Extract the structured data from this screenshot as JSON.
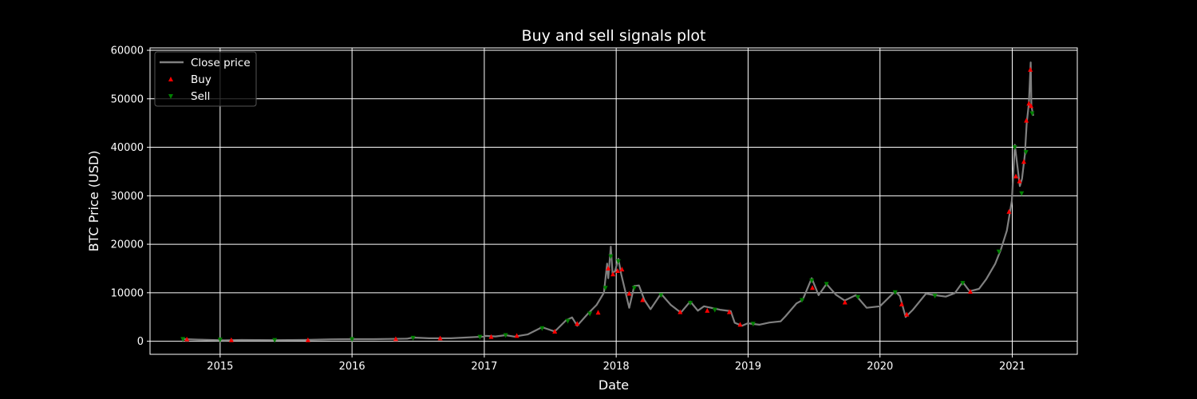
{
  "chart_data": {
    "type": "line",
    "title": "Buy and sell signals plot",
    "xlabel": "Date",
    "ylabel": "BTC Price (USD)",
    "x_range": [
      "2014-06-21",
      "2021-06-30"
    ],
    "ylim": [
      -2700,
      60500
    ],
    "x_ticks": [
      "2015",
      "2016",
      "2017",
      "2018",
      "2019",
      "2020",
      "2021"
    ],
    "y_ticks": [
      0,
      10000,
      20000,
      30000,
      40000,
      50000,
      60000
    ],
    "grid": true,
    "legend_position": "top-left",
    "legend": [
      {
        "label": "Close price",
        "marker": "line"
      },
      {
        "label": "Buy",
        "marker": "triangle-up"
      },
      {
        "label": "Sell",
        "marker": "triangle-down"
      }
    ],
    "colors": {
      "background": "#000000",
      "text": "#ffffff",
      "grid": "#ffffff",
      "close": "#808080",
      "buy": "#ff0000",
      "sell": "#008000"
    },
    "series": [
      {
        "name": "Close price",
        "points": [
          [
            "2014-09-17",
            457
          ],
          [
            "2014-11-01",
            330
          ],
          [
            "2015-01-14",
            180
          ],
          [
            "2015-03-01",
            260
          ],
          [
            "2015-06-01",
            230
          ],
          [
            "2015-08-15",
            260
          ],
          [
            "2015-11-04",
            400
          ],
          [
            "2015-12-31",
            430
          ],
          [
            "2016-03-01",
            430
          ],
          [
            "2016-06-01",
            530
          ],
          [
            "2016-06-18",
            760
          ],
          [
            "2016-08-01",
            610
          ],
          [
            "2016-10-01",
            610
          ],
          [
            "2016-12-31",
            960
          ],
          [
            "2017-01-05",
            1100
          ],
          [
            "2017-02-01",
            990
          ],
          [
            "2017-03-01",
            1250
          ],
          [
            "2017-03-25",
            950
          ],
          [
            "2017-05-01",
            1400
          ],
          [
            "2017-06-10",
            2900
          ],
          [
            "2017-07-15",
            2000
          ],
          [
            "2017-08-15",
            4300
          ],
          [
            "2017-09-01",
            4900
          ],
          [
            "2017-09-15",
            3200
          ],
          [
            "2017-10-15",
            5700
          ],
          [
            "2017-11-08",
            7500
          ],
          [
            "2017-11-28",
            10000
          ],
          [
            "2017-12-07",
            16000
          ],
          [
            "2017-12-10",
            13000
          ],
          [
            "2017-12-17",
            19500
          ],
          [
            "2017-12-22",
            14000
          ],
          [
            "2017-12-29",
            14500
          ],
          [
            "2018-01-07",
            17000
          ],
          [
            "2018-01-15",
            13800
          ],
          [
            "2018-02-06",
            6900
          ],
          [
            "2018-02-20",
            11400
          ],
          [
            "2018-03-05",
            11500
          ],
          [
            "2018-03-20",
            8500
          ],
          [
            "2018-04-06",
            6600
          ],
          [
            "2018-05-05",
            9800
          ],
          [
            "2018-06-01",
            7500
          ],
          [
            "2018-06-29",
            5900
          ],
          [
            "2018-07-25",
            8200
          ],
          [
            "2018-08-15",
            6300
          ],
          [
            "2018-09-01",
            7200
          ],
          [
            "2018-10-15",
            6500
          ],
          [
            "2018-11-14",
            6200
          ],
          [
            "2018-11-25",
            3800
          ],
          [
            "2018-12-15",
            3200
          ],
          [
            "2018-12-31",
            3700
          ],
          [
            "2019-02-01",
            3400
          ],
          [
            "2019-03-01",
            3850
          ],
          [
            "2019-04-01",
            4100
          ],
          [
            "2019-04-15",
            5200
          ],
          [
            "2019-05-15",
            7800
          ],
          [
            "2019-06-01",
            8500
          ],
          [
            "2019-06-26",
            13000
          ],
          [
            "2019-07-15",
            9500
          ],
          [
            "2019-08-06",
            11800
          ],
          [
            "2019-09-01",
            9600
          ],
          [
            "2019-09-25",
            8400
          ],
          [
            "2019-10-26",
            9500
          ],
          [
            "2019-11-25",
            6900
          ],
          [
            "2020-01-01",
            7200
          ],
          [
            "2020-02-12",
            10300
          ],
          [
            "2020-02-25",
            9300
          ],
          [
            "2020-03-12",
            5000
          ],
          [
            "2020-04-01",
            6500
          ],
          [
            "2020-05-07",
            9800
          ],
          [
            "2020-06-01",
            9500
          ],
          [
            "2020-07-01",
            9200
          ],
          [
            "2020-07-26",
            9900
          ],
          [
            "2020-08-17",
            12200
          ],
          [
            "2020-09-05",
            10300
          ],
          [
            "2020-10-01",
            10800
          ],
          [
            "2020-10-21",
            12800
          ],
          [
            "2020-11-15",
            16000
          ],
          [
            "2020-12-01",
            19000
          ],
          [
            "2020-12-17",
            22800
          ],
          [
            "2020-12-31",
            29000
          ],
          [
            "2021-01-08",
            40500
          ],
          [
            "2021-01-22",
            32000
          ],
          [
            "2021-01-28",
            33500
          ],
          [
            "2021-02-05",
            38500
          ],
          [
            "2021-02-10",
            45000
          ],
          [
            "2021-02-16",
            49000
          ],
          [
            "2021-02-21",
            57500
          ],
          [
            "2021-02-23",
            48500
          ],
          [
            "2021-02-28",
            46500
          ]
        ]
      },
      {
        "name": "Buy",
        "marker": "triangle-up",
        "points": [
          [
            "2014-10-01",
            380
          ],
          [
            "2015-02-01",
            220
          ],
          [
            "2015-09-01",
            230
          ],
          [
            "2016-05-01",
            450
          ],
          [
            "2016-09-01",
            600
          ],
          [
            "2017-01-20",
            900
          ],
          [
            "2017-04-01",
            1100
          ],
          [
            "2017-07-15",
            2000
          ],
          [
            "2017-09-15",
            3600
          ],
          [
            "2017-11-12",
            5900
          ],
          [
            "2017-12-10",
            15000
          ],
          [
            "2017-12-23",
            13800
          ],
          [
            "2018-01-05",
            14500
          ],
          [
            "2018-01-17",
            14800
          ],
          [
            "2018-02-06",
            9800
          ],
          [
            "2018-03-15",
            8500
          ],
          [
            "2018-06-27",
            6000
          ],
          [
            "2018-09-10",
            6300
          ],
          [
            "2018-11-10",
            6000
          ],
          [
            "2018-12-10",
            3400
          ],
          [
            "2019-06-28",
            11000
          ],
          [
            "2019-09-26",
            8000
          ],
          [
            "2020-03-01",
            7600
          ],
          [
            "2020-03-15",
            5500
          ],
          [
            "2020-09-07",
            10200
          ],
          [
            "2020-12-23",
            26700
          ],
          [
            "2021-01-11",
            34000
          ],
          [
            "2021-01-21",
            33000
          ],
          [
            "2021-02-02",
            37000
          ],
          [
            "2021-02-09",
            45500
          ],
          [
            "2021-02-16",
            49000
          ],
          [
            "2021-02-20",
            56000
          ],
          [
            "2021-02-22",
            48500
          ]
        ]
      },
      {
        "name": "Sell",
        "marker": "triangle-down",
        "points": [
          [
            "2014-09-20",
            450
          ],
          [
            "2015-01-01",
            320
          ],
          [
            "2015-06-01",
            240
          ],
          [
            "2016-01-01",
            420
          ],
          [
            "2016-06-18",
            700
          ],
          [
            "2016-12-20",
            900
          ],
          [
            "2017-03-01",
            1250
          ],
          [
            "2017-06-10",
            2700
          ],
          [
            "2017-08-20",
            4200
          ],
          [
            "2017-10-20",
            5700
          ],
          [
            "2017-12-02",
            11000
          ],
          [
            "2017-12-17",
            17500
          ],
          [
            "2018-01-07",
            16500
          ],
          [
            "2018-02-20",
            11000
          ],
          [
            "2018-05-05",
            9500
          ],
          [
            "2018-07-25",
            7900
          ],
          [
            "2018-10-01",
            6500
          ],
          [
            "2019-01-15",
            3600
          ],
          [
            "2019-05-30",
            8500
          ],
          [
            "2019-06-26",
            12500
          ],
          [
            "2019-08-06",
            11800
          ],
          [
            "2019-11-01",
            9100
          ],
          [
            "2020-02-12",
            10100
          ],
          [
            "2020-06-01",
            9400
          ],
          [
            "2020-08-17",
            12000
          ],
          [
            "2020-11-25",
            18500
          ],
          [
            "2021-01-08",
            40000
          ],
          [
            "2021-01-27",
            30500
          ],
          [
            "2021-02-08",
            39000
          ],
          [
            "2021-02-25",
            47000
          ]
        ]
      }
    ]
  }
}
